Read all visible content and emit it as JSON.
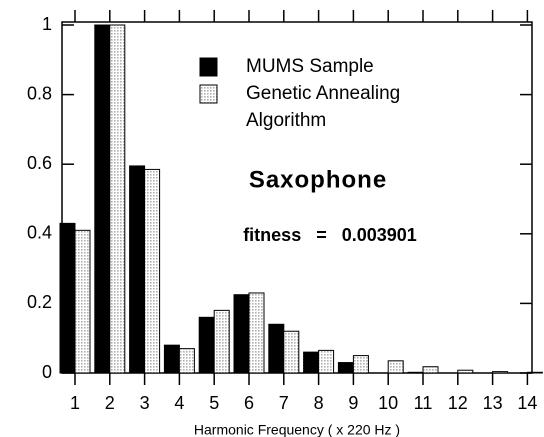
{
  "chart_data": {
    "type": "bar",
    "categories": [
      "1",
      "2",
      "3",
      "4",
      "5",
      "6",
      "7",
      "8",
      "9",
      "10",
      "11",
      "12",
      "13",
      "14"
    ],
    "series": [
      {
        "name": "MUMS Sample",
        "color": "#000000",
        "values": [
          0.43,
          1.0,
          0.595,
          0.08,
          0.16,
          0.225,
          0.14,
          0.06,
          0.03,
          0,
          0.002,
          0,
          0,
          0
        ]
      },
      {
        "name": "Genetic Annealing Algorithm",
        "color": "#b0b0b0",
        "values": [
          0.41,
          1.0,
          0.585,
          0.07,
          0.18,
          0.23,
          0.12,
          0.065,
          0.05,
          0.035,
          0.018,
          0.008,
          0.004,
          0.002
        ]
      }
    ],
    "xlabel": "Harmonic Frequency ( x 220 Hz )",
    "annotations": [
      "Saxophone",
      "fitness   =   0.003901"
    ],
    "ylim": [
      0,
      1
    ],
    "yticks": [
      0,
      0.2,
      0.4,
      0.6,
      0.8,
      1
    ],
    "grid": false
  }
}
